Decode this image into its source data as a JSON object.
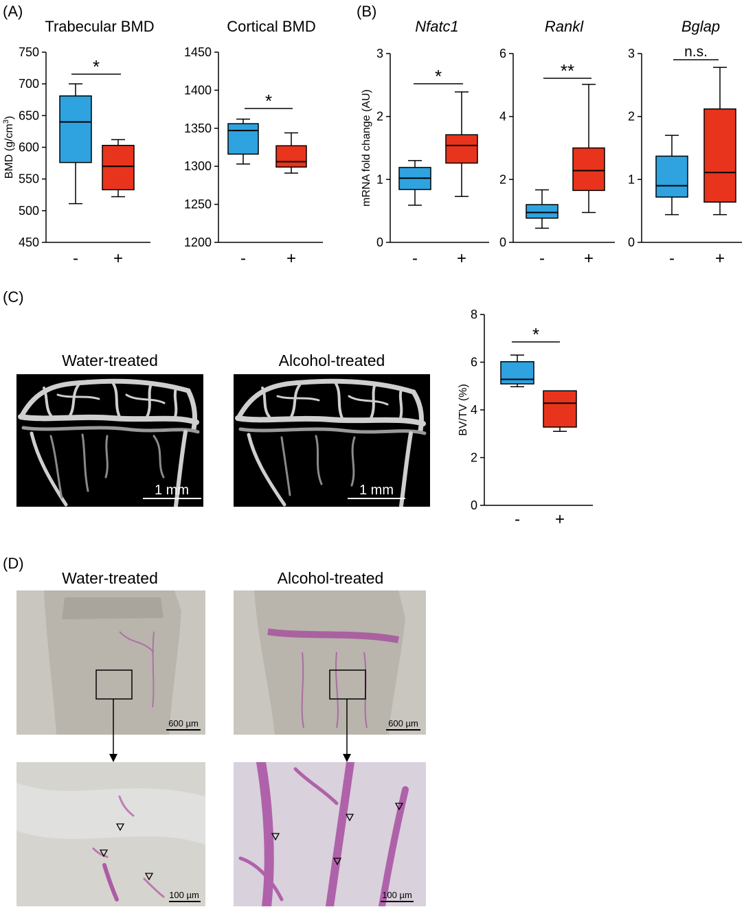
{
  "panels": {
    "a": "(A)",
    "b": "(B)",
    "c": "(C)",
    "d": "(D)"
  },
  "colors": {
    "water": "#2ea3e0",
    "alcohol": "#e8341c",
    "tissue_stain": "#a23d9a"
  },
  "chart_data": [
    {
      "id": "trabecular",
      "type": "box",
      "title": "Trabecular BMD",
      "title_italic": false,
      "ylabel": "BMD (g/cm³)",
      "ylim": [
        450,
        750
      ],
      "yticks": [
        450,
        500,
        550,
        600,
        650,
        700,
        750
      ],
      "categories": [
        "-",
        "+"
      ],
      "boxes": [
        {
          "min": 511,
          "q1": 576,
          "median": 640,
          "q3": 681,
          "max": 700,
          "color": "#2ea3e0"
        },
        {
          "min": 522,
          "q1": 533,
          "median": 570,
          "q3": 603,
          "max": 612,
          "color": "#e8341c"
        }
      ],
      "significance": "*"
    },
    {
      "id": "cortical",
      "type": "box",
      "title": "Cortical BMD",
      "title_italic": false,
      "ylabel": "",
      "ylim": [
        1200,
        1450
      ],
      "yticks": [
        1200,
        1250,
        1300,
        1350,
        1400,
        1450
      ],
      "categories": [
        "-",
        "+"
      ],
      "boxes": [
        {
          "min": 1303,
          "q1": 1316,
          "median": 1347,
          "q3": 1356,
          "max": 1362,
          "color": "#2ea3e0"
        },
        {
          "min": 1291,
          "q1": 1299,
          "median": 1306,
          "q3": 1327,
          "max": 1344,
          "color": "#e8341c"
        }
      ],
      "significance": "*"
    },
    {
      "id": "nfatc1",
      "type": "box",
      "title": "Nfatc1",
      "title_italic": true,
      "ylabel": "mRNA fold change (AU)",
      "ylim": [
        0,
        3
      ],
      "yticks": [
        0,
        1,
        2,
        3
      ],
      "categories": [
        "-",
        "+"
      ],
      "boxes": [
        {
          "min": 0.59,
          "q1": 0.84,
          "median": 1.02,
          "q3": 1.19,
          "max": 1.3,
          "color": "#2ea3e0"
        },
        {
          "min": 0.73,
          "q1": 1.26,
          "median": 1.54,
          "q3": 1.71,
          "max": 2.39,
          "color": "#e8341c"
        }
      ],
      "significance": "*"
    },
    {
      "id": "rankl",
      "type": "box",
      "title": "Rankl",
      "title_italic": true,
      "ylabel": "",
      "ylim": [
        0,
        6
      ],
      "yticks": [
        0,
        2,
        4,
        6
      ],
      "categories": [
        "-",
        "+"
      ],
      "boxes": [
        {
          "min": 0.45,
          "q1": 0.77,
          "median": 0.95,
          "q3": 1.2,
          "max": 1.67,
          "color": "#2ea3e0"
        },
        {
          "min": 0.95,
          "q1": 1.65,
          "median": 2.28,
          "q3": 3.0,
          "max": 5.02,
          "color": "#e8341c"
        }
      ],
      "significance": "**"
    },
    {
      "id": "bglap",
      "type": "box",
      "title": "Bglap",
      "title_italic": true,
      "ylabel": "",
      "ylim": [
        0,
        3
      ],
      "yticks": [
        0,
        1,
        2,
        3
      ],
      "categories": [
        "-",
        "+"
      ],
      "boxes": [
        {
          "min": 0.44,
          "q1": 0.72,
          "median": 0.9,
          "q3": 1.37,
          "max": 1.7,
          "color": "#2ea3e0"
        },
        {
          "min": 0.44,
          "q1": 0.64,
          "median": 1.11,
          "q3": 2.12,
          "max": 2.78,
          "color": "#e8341c"
        }
      ],
      "significance": "n.s."
    },
    {
      "id": "bvtv",
      "type": "box",
      "title": "",
      "title_italic": false,
      "ylabel": "BV/TV (%)",
      "ylim": [
        0,
        8
      ],
      "yticks": [
        0,
        2,
        4,
        6,
        8
      ],
      "categories": [
        "-",
        "+"
      ],
      "boxes": [
        {
          "min": 4.97,
          "q1": 5.09,
          "median": 5.28,
          "q3": 6.02,
          "max": 6.3,
          "color": "#2ea3e0"
        },
        {
          "min": 3.1,
          "q1": 3.28,
          "median": 4.28,
          "q3": 4.8,
          "max": 4.8,
          "color": "#e8341c"
        }
      ],
      "significance": "*"
    }
  ],
  "images": {
    "microct_water_title": "Water-treated",
    "microct_alcohol_title": "Alcohol-treated",
    "microct_scale": "1 mm",
    "histo_water_title": "Water-treated",
    "histo_alcohol_title": "Alcohol-treated",
    "histo_overview_scale": "600 µm",
    "histo_zoom_scale": "100 µm"
  }
}
